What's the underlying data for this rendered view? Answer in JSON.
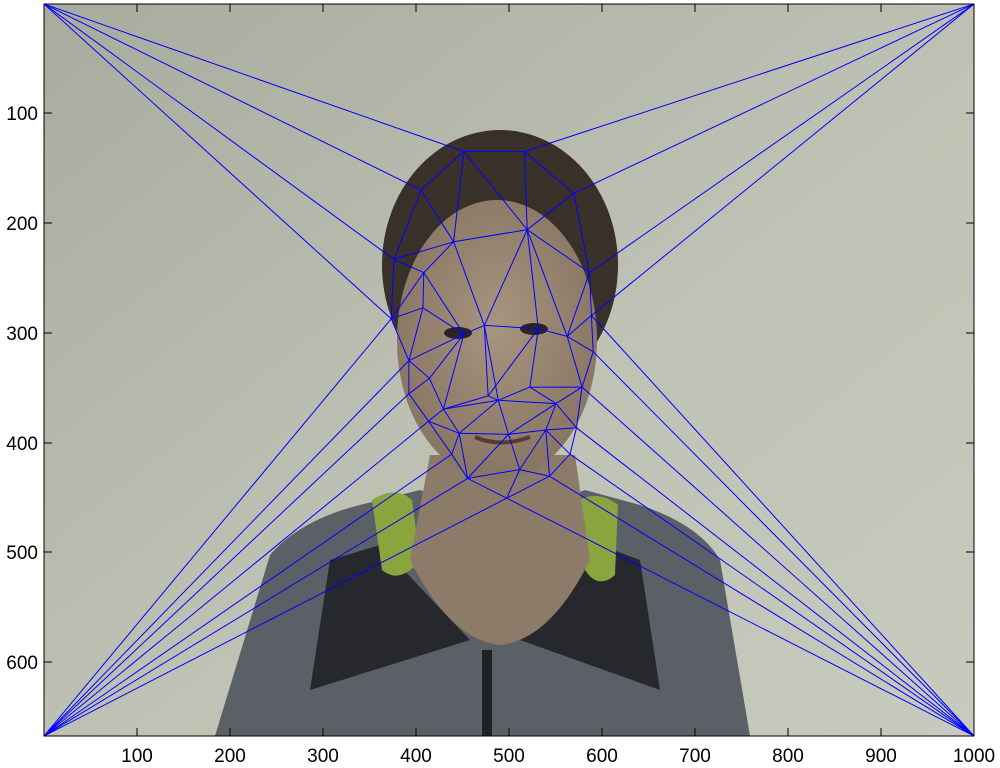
{
  "x_ticks": [
    "100",
    "200",
    "300",
    "400",
    "500",
    "600",
    "700",
    "800",
    "900",
    "1000"
  ],
  "y_ticks": [
    "100",
    "200",
    "300",
    "400",
    "500",
    "600"
  ],
  "x_range": [
    1,
    1000
  ],
  "y_range": [
    1,
    666
  ],
  "y_direction": "reversed",
  "colors": {
    "mesh": "#0000ff",
    "wall": "#bcbfb1",
    "hair": "#3a302a",
    "skin": "#9c8a78",
    "jacket": "#5b5f66",
    "jacket_dark": "#26282d",
    "scarf": "#8aa53e"
  },
  "mesh_points": [
    [
      1,
      1
    ],
    [
      1000,
      1
    ],
    [
      1,
      666
    ],
    [
      1000,
      666
    ],
    [
      452,
      135
    ],
    [
      517,
      135
    ],
    [
      406,
      170
    ],
    [
      570,
      173
    ],
    [
      377,
      233
    ],
    [
      441,
      217
    ],
    [
      520,
      206
    ],
    [
      587,
      245
    ],
    [
      374,
      287
    ],
    [
      409,
      245
    ],
    [
      408,
      277
    ],
    [
      589,
      284
    ],
    [
      393,
      325
    ],
    [
      452,
      301
    ],
    [
      474,
      293
    ],
    [
      532,
      296
    ],
    [
      563,
      303
    ],
    [
      415,
      341
    ],
    [
      393,
      355
    ],
    [
      478,
      357
    ],
    [
      523,
      349
    ],
    [
      579,
      349
    ],
    [
      591,
      317
    ],
    [
      414,
      380
    ],
    [
      430,
      369
    ],
    [
      489,
      361
    ],
    [
      551,
      364
    ],
    [
      447,
      391
    ],
    [
      500,
      392
    ],
    [
      512,
      424
    ],
    [
      540,
      388
    ],
    [
      573,
      386
    ],
    [
      439,
      410
    ],
    [
      456,
      432
    ],
    [
      498,
      450
    ],
    [
      544,
      430
    ],
    [
      566,
      410
    ]
  ],
  "mesh_edges": [
    [
      0,
      4
    ],
    [
      0,
      6
    ],
    [
      0,
      8
    ],
    [
      0,
      12
    ],
    [
      1,
      5
    ],
    [
      1,
      7
    ],
    [
      1,
      11
    ],
    [
      1,
      15
    ],
    [
      2,
      12
    ],
    [
      2,
      16
    ],
    [
      2,
      22
    ],
    [
      2,
      27
    ],
    [
      2,
      36
    ],
    [
      2,
      37
    ],
    [
      2,
      38
    ],
    [
      3,
      15
    ],
    [
      3,
      26
    ],
    [
      3,
      25
    ],
    [
      3,
      35
    ],
    [
      3,
      40
    ],
    [
      3,
      39
    ],
    [
      3,
      38
    ],
    [
      4,
      5
    ],
    [
      4,
      6
    ],
    [
      4,
      9
    ],
    [
      4,
      10
    ],
    [
      5,
      7
    ],
    [
      5,
      10
    ],
    [
      6,
      8
    ],
    [
      6,
      9
    ],
    [
      7,
      10
    ],
    [
      7,
      11
    ],
    [
      8,
      9
    ],
    [
      8,
      13
    ],
    [
      8,
      12
    ],
    [
      9,
      10
    ],
    [
      9,
      13
    ],
    [
      9,
      18
    ],
    [
      10,
      11
    ],
    [
      10,
      18
    ],
    [
      10,
      19
    ],
    [
      10,
      20
    ],
    [
      11,
      15
    ],
    [
      11,
      20
    ],
    [
      12,
      13
    ],
    [
      12,
      14
    ],
    [
      12,
      16
    ],
    [
      13,
      14
    ],
    [
      13,
      17
    ],
    [
      14,
      16
    ],
    [
      14,
      17
    ],
    [
      15,
      20
    ],
    [
      15,
      26
    ],
    [
      16,
      17
    ],
    [
      16,
      21
    ],
    [
      16,
      22
    ],
    [
      17,
      18
    ],
    [
      17,
      21
    ],
    [
      17,
      28
    ],
    [
      18,
      19
    ],
    [
      18,
      23
    ],
    [
      18,
      29
    ],
    [
      19,
      20
    ],
    [
      19,
      24
    ],
    [
      19,
      23
    ],
    [
      20,
      26
    ],
    [
      20,
      25
    ],
    [
      21,
      22
    ],
    [
      21,
      28
    ],
    [
      22,
      27
    ],
    [
      23,
      28
    ],
    [
      23,
      29
    ],
    [
      24,
      29
    ],
    [
      24,
      30
    ],
    [
      24,
      25
    ],
    [
      25,
      26
    ],
    [
      25,
      30
    ],
    [
      25,
      35
    ],
    [
      27,
      28
    ],
    [
      27,
      31
    ],
    [
      27,
      36
    ],
    [
      28,
      31
    ],
    [
      28,
      29
    ],
    [
      29,
      30
    ],
    [
      29,
      32
    ],
    [
      29,
      31
    ],
    [
      30,
      34
    ],
    [
      30,
      32
    ],
    [
      30,
      35
    ],
    [
      31,
      32
    ],
    [
      31,
      36
    ],
    [
      31,
      37
    ],
    [
      32,
      33
    ],
    [
      32,
      34
    ],
    [
      32,
      37
    ],
    [
      33,
      34
    ],
    [
      33,
      37
    ],
    [
      33,
      38
    ],
    [
      33,
      39
    ],
    [
      34,
      35
    ],
    [
      34,
      39
    ],
    [
      34,
      40
    ],
    [
      35,
      40
    ],
    [
      36,
      37
    ],
    [
      37,
      38
    ],
    [
      38,
      39
    ],
    [
      39,
      40
    ]
  ]
}
